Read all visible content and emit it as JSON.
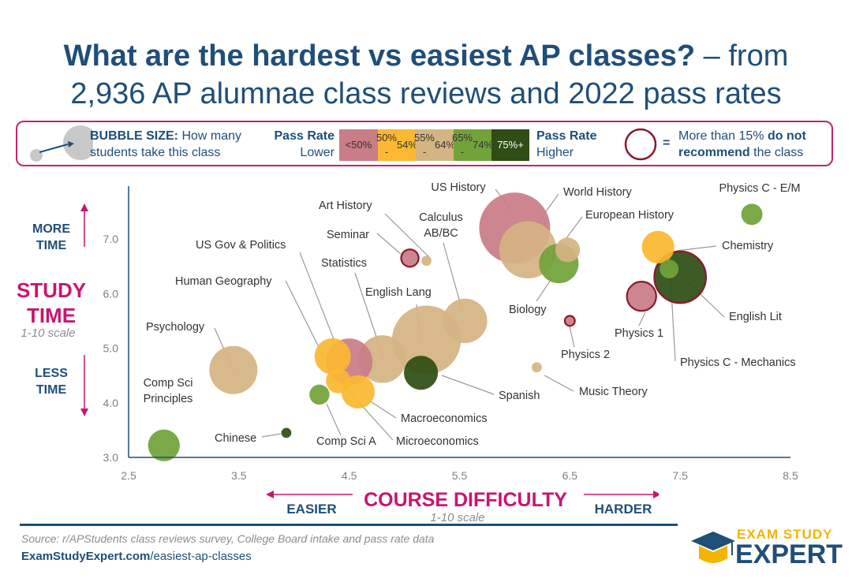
{
  "title": {
    "bold_part": "What are the hardest vs easiest AP classes?",
    "rest_part": " – from",
    "line2": "2,936 AP alumnae class reviews and 2022 pass rates"
  },
  "legend": {
    "bubble_size_label": "BUBBLE SIZE:",
    "bubble_size_text_1": "How many",
    "bubble_size_text_2": "students take this class",
    "pass_rate_lower_1": "Pass Rate",
    "pass_rate_lower_2": "Lower",
    "pass_rate_higher_1": "Pass Rate",
    "pass_rate_higher_2": "Higher",
    "bins": [
      {
        "label_1": "<50%",
        "label_2": "",
        "color": "#c97d86"
      },
      {
        "label_1": "50% -",
        "label_2": "54%",
        "color": "#fbb832"
      },
      {
        "label_1": "55% -",
        "label_2": "64%",
        "color": "#d4b483"
      },
      {
        "label_1": "65% -",
        "label_2": "74%",
        "color": "#72a33a"
      },
      {
        "label_1": "75%+",
        "label_2": "",
        "color": "#2f4d14"
      }
    ],
    "equals": "=",
    "not_recommend_1a": "More than 15% ",
    "not_recommend_1b": "do not",
    "not_recommend_2a": "recommend",
    "not_recommend_2b": " the class",
    "not_recommend_color": "#8b1a2b"
  },
  "axes": {
    "y_title_1": "STUDY",
    "y_title_2": "TIME",
    "y_scale": "1-10 scale",
    "y_more_1": "MORE",
    "y_more_2": "TIME",
    "y_less_1": "LESS",
    "y_less_2": "TIME",
    "x_title": "COURSE DIFFICULTY",
    "x_scale": "1-10 scale",
    "x_easier": "EASIER",
    "x_harder": "HARDER",
    "accent_color": "#c8166e"
  },
  "chart_data": {
    "type": "scatter",
    "subtype": "bubble",
    "xlabel": "COURSE DIFFICULTY",
    "ylabel": "STUDY TIME",
    "xlim": [
      2.5,
      8.5
    ],
    "ylim": [
      3.0,
      7.8
    ],
    "x_ticks": [
      "2.5",
      "3.5",
      "4.5",
      "5.5",
      "6.5",
      "7.5",
      "8.5"
    ],
    "y_ticks": [
      "3.0",
      "4.0",
      "5.0",
      "6.0",
      "7.0"
    ],
    "grid": false,
    "points": [
      {
        "name": "Physics C - E/M",
        "x": 8.15,
        "y": 7.45,
        "size": 0.09,
        "pass": "65-74",
        "not_recommend": false
      },
      {
        "name": "US History",
        "x": 6.0,
        "y": 7.2,
        "size": 1.0,
        "pass": "<50",
        "not_recommend": false
      },
      {
        "name": "World History",
        "x": 6.12,
        "y": 6.8,
        "size": 0.65,
        "pass": "55-64",
        "not_recommend": false
      },
      {
        "name": "European History",
        "x": 6.48,
        "y": 6.8,
        "size": 0.12,
        "pass": "55-64",
        "not_recommend": false
      },
      {
        "name": "Chemistry",
        "x": 7.3,
        "y": 6.85,
        "size": 0.21,
        "pass": "50-54",
        "not_recommend": false
      },
      {
        "name": "Biology",
        "x": 6.4,
        "y": 6.55,
        "size": 0.31,
        "pass": "65-74",
        "not_recommend": false
      },
      {
        "name": "English Lit",
        "x": 7.5,
        "y": 6.3,
        "size": 0.53,
        "pass": "75+",
        "not_recommend": true
      },
      {
        "name": "Physics C - Mechanics",
        "x": 7.4,
        "y": 6.45,
        "size": 0.07,
        "pass": "65-74",
        "not_recommend": false
      },
      {
        "name": "Physics 1",
        "x": 7.15,
        "y": 5.95,
        "size": 0.17,
        "pass": "<50",
        "not_recommend": true
      },
      {
        "name": "Physics 2",
        "x": 6.5,
        "y": 5.5,
        "size": 0.02,
        "pass": "<50",
        "not_recommend": true
      },
      {
        "name": "Music Theory",
        "x": 6.2,
        "y": 4.65,
        "size": 0.02,
        "pass": "55-64",
        "not_recommend": false
      },
      {
        "name": "Seminar",
        "x": 5.05,
        "y": 6.65,
        "size": 0.06,
        "pass": "<50",
        "not_recommend": true
      },
      {
        "name": "Art History",
        "x": 5.2,
        "y": 6.6,
        "size": 0.02,
        "pass": "55-64",
        "not_recommend": false
      },
      {
        "name": "Calculus AB/BC",
        "x": 5.55,
        "y": 5.5,
        "size": 0.39,
        "pass": "55-64",
        "not_recommend": false
      },
      {
        "name": "English Lang",
        "x": 5.2,
        "y": 5.15,
        "size": 0.94,
        "pass": "55-64",
        "not_recommend": false
      },
      {
        "name": "Spanish",
        "x": 5.15,
        "y": 4.55,
        "size": 0.23,
        "pass": "75+",
        "not_recommend": false
      },
      {
        "name": "Statistics",
        "x": 4.8,
        "y": 4.8,
        "size": 0.45,
        "pass": "55-64",
        "not_recommend": false
      },
      {
        "name": "US Gov & Politics",
        "x": 4.5,
        "y": 4.75,
        "size": 0.43,
        "pass": "<50",
        "not_recommend": false
      },
      {
        "name": "Human Geography",
        "x": 4.35,
        "y": 4.85,
        "size": 0.26,
        "pass": "50-54",
        "not_recommend": false
      },
      {
        "name": "Macroeconomics",
        "x": 4.58,
        "y": 4.2,
        "size": 0.22,
        "pass": "50-54",
        "not_recommend": false
      },
      {
        "name": "Microeconomics",
        "x": 4.4,
        "y": 4.4,
        "size": 0.12,
        "pass": "50-54",
        "not_recommend": false
      },
      {
        "name": "Comp Sci A",
        "x": 4.23,
        "y": 4.15,
        "size": 0.08,
        "pass": "65-74",
        "not_recommend": false
      },
      {
        "name": "Psychology",
        "x": 3.45,
        "y": 4.6,
        "size": 0.46,
        "pass": "55-64",
        "not_recommend": false
      },
      {
        "name": "Chinese",
        "x": 3.93,
        "y": 3.45,
        "size": 0.02,
        "pass": "75+",
        "not_recommend": false
      },
      {
        "name": "Comp Sci Principles",
        "x": 2.82,
        "y": 3.22,
        "size": 0.2,
        "pass": "65-74",
        "not_recommend": false
      }
    ]
  },
  "footer": {
    "source": "Source: r/APStudents class reviews survey, College Board intake and pass rate data",
    "url_bold": "ExamStudyExpert.com",
    "url_rest": "/easiest-ap-classes",
    "logo_line1": "EXAM STUDY",
    "logo_line2": "EXPERT"
  },
  "colors": {
    "navy": "#1f4e79",
    "pass_lt50": "#c97d86",
    "pass_50_54": "#fbb832",
    "pass_55_64": "#d4b483",
    "pass_65_74": "#72a33a",
    "pass_75plus": "#2f4d14",
    "logo_gold": "#f4b400"
  }
}
